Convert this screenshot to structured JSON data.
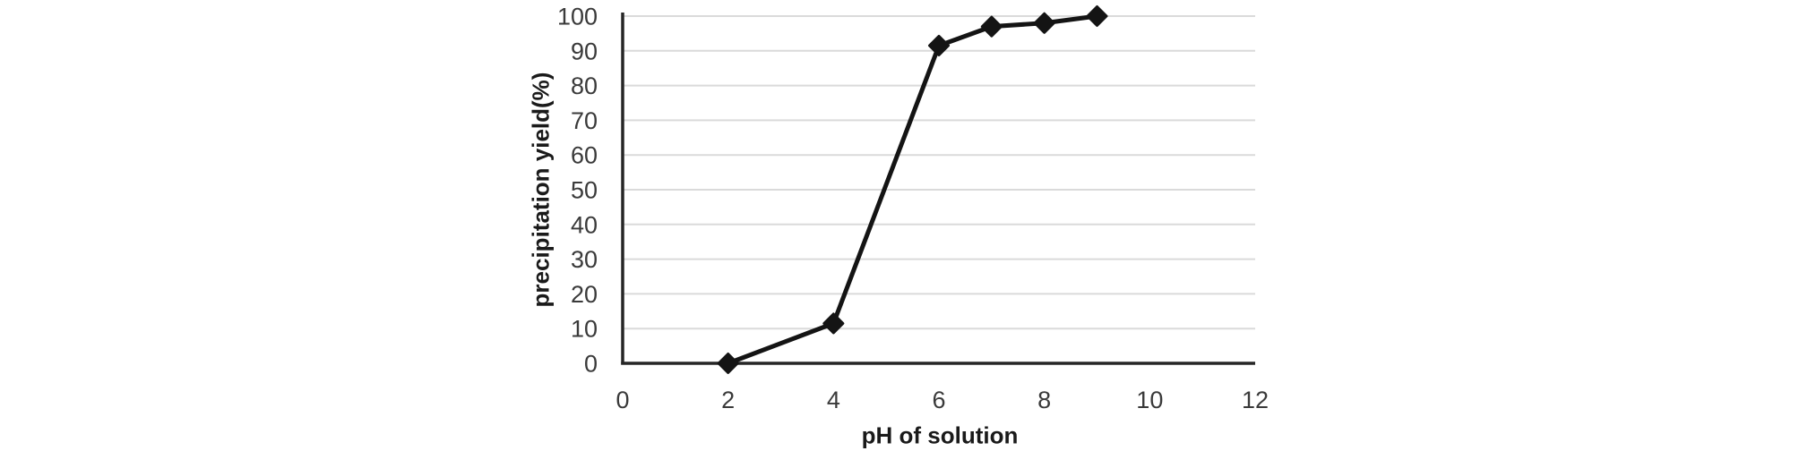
{
  "chart_data": {
    "type": "line",
    "title": "",
    "xlabel": "pH of solution",
    "ylabel": "precipitation yield(%)",
    "x": [
      2,
      4,
      6,
      7,
      8,
      9
    ],
    "y": [
      0,
      11.5,
      91.5,
      97,
      98,
      100
    ],
    "xlim": [
      0,
      12
    ],
    "ylim": [
      0,
      100
    ],
    "xticks": [
      0,
      2,
      4,
      6,
      8,
      10,
      12
    ],
    "yticks": [
      0,
      10,
      20,
      30,
      40,
      50,
      60,
      70,
      80,
      90,
      100
    ],
    "grid": "horizontal",
    "legend": "none",
    "marker": "diamond",
    "colors": {
      "line": "#141414",
      "marker": "#141414",
      "axis": "#262626",
      "grid": "#dadada",
      "tick_text": "#3a3a3a",
      "title_text": "#1a1a1a",
      "background": "#ffffff"
    }
  }
}
